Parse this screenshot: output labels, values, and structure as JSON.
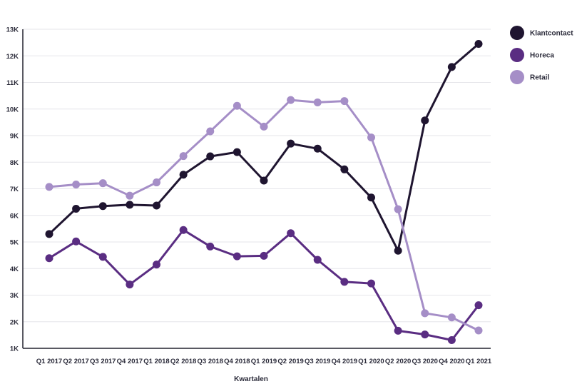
{
  "chart_data": {
    "type": "line",
    "title": "",
    "xlabel": "Kwartalen",
    "ylabel": "",
    "categories": [
      "Q1 2017",
      "Q2 2017",
      "Q3 2017",
      "Q4 2017",
      "Q1 2018",
      "Q2 2018",
      "Q3 2018",
      "Q4 2018",
      "Q1 2019",
      "Q2 2019",
      "Q3 2019",
      "Q4 2019",
      "Q1 2020",
      "Q2 2020",
      "Q3 2020",
      "Q4 2020",
      "Q1 2021"
    ],
    "yticks": [
      1000,
      2000,
      3000,
      4000,
      5000,
      6000,
      7000,
      8000,
      9000,
      10000,
      11000,
      12000,
      13000
    ],
    "ytick_labels": [
      "1K",
      "2K",
      "3K",
      "4K",
      "5K",
      "6K",
      "7K",
      "8K",
      "9K",
      "10K",
      "11K",
      "12K",
      "13K"
    ],
    "ylim": [
      1000,
      13000
    ],
    "grid": true,
    "legend_position": "top-right",
    "series": [
      {
        "name": "Klantcontact",
        "color": "#1f1530",
        "values": [
          5300,
          6250,
          6350,
          6400,
          6370,
          7530,
          8220,
          8380,
          7310,
          8700,
          8510,
          7730,
          6670,
          4670,
          9570,
          11580,
          12450
        ]
      },
      {
        "name": "Horeca",
        "color": "#5a2d82",
        "values": [
          4390,
          5020,
          4440,
          3400,
          4150,
          5450,
          4830,
          4460,
          4480,
          5330,
          4330,
          3500,
          3440,
          1660,
          1520,
          1310,
          2620
        ]
      },
      {
        "name": "Retail",
        "color": "#a58ec7",
        "values": [
          7070,
          7160,
          7210,
          6740,
          7240,
          8230,
          9160,
          10120,
          9340,
          10340,
          10250,
          10300,
          8930,
          6230,
          2320,
          2160,
          1670
        ]
      }
    ]
  }
}
